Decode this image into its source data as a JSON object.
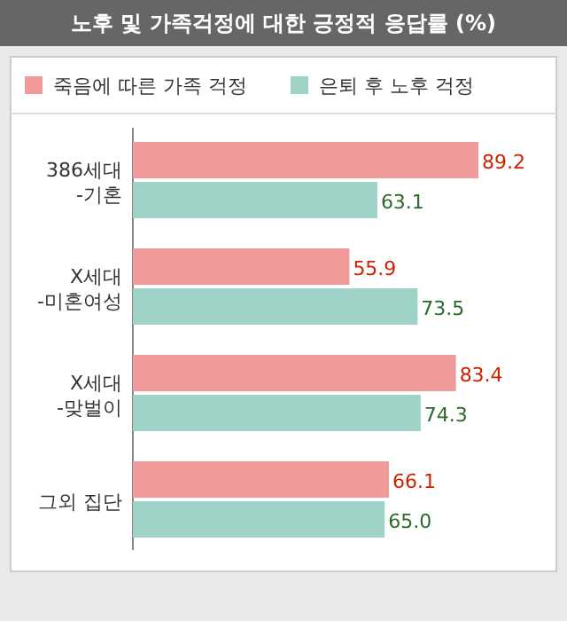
{
  "chart_data": {
    "type": "bar",
    "orientation": "horizontal",
    "title": "노후 및 가족걱정에 대한 긍정적 응답률 (%)",
    "categories": [
      "386세대\n-기혼",
      "X세대\n-미혼여성",
      "X세대\n-맞벌이",
      "그외 집단"
    ],
    "series": [
      {
        "name": "죽음에 따른 가족 걱정",
        "color": "#f09a9a",
        "values": [
          89.2,
          55.9,
          83.4,
          66.1
        ],
        "value_labels": [
          "89.2",
          "55.9",
          "83.4",
          "66.1"
        ]
      },
      {
        "name": "은퇴 후 노후 걱정",
        "color": "#9fd3c7",
        "values": [
          63.1,
          73.5,
          74.3,
          65.0
        ],
        "value_labels": [
          "63.1",
          "73.5",
          "74.3",
          "65.0"
        ]
      }
    ],
    "legend": "top"
  }
}
